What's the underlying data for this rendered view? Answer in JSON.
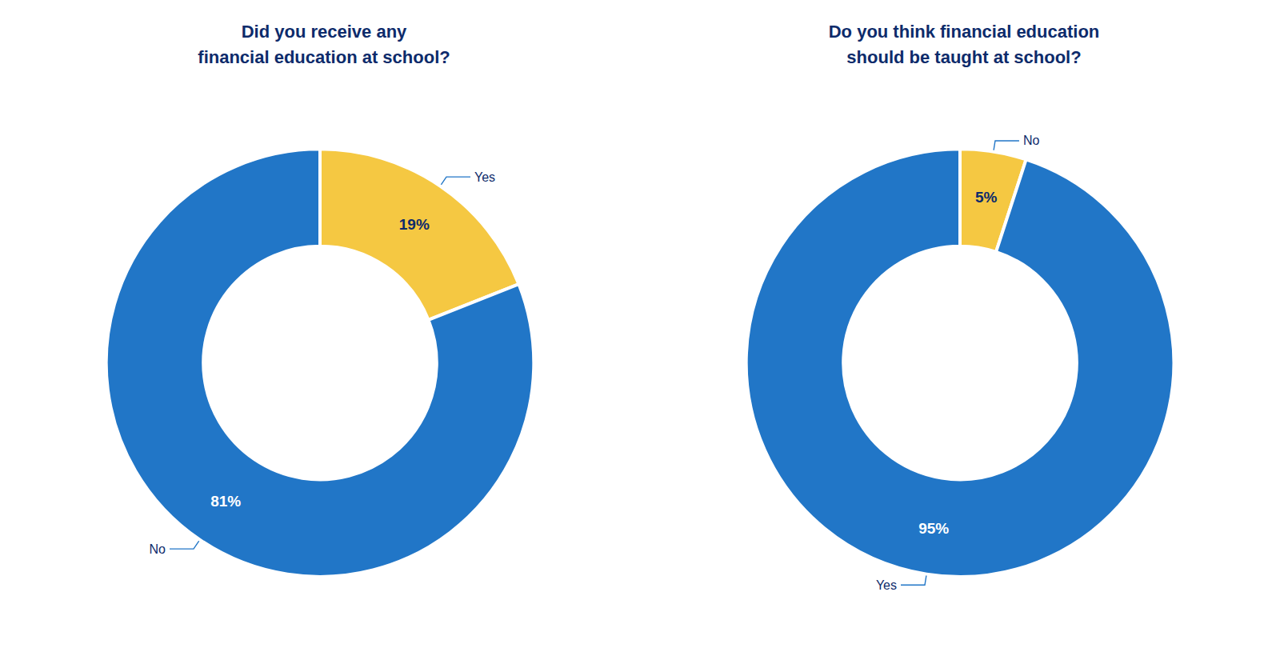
{
  "chart_data": [
    {
      "type": "pie",
      "title": "Did you receive any\nfinancial education at school?",
      "categories": [
        "Yes",
        "No"
      ],
      "values": [
        19,
        81
      ],
      "value_labels": [
        "19%",
        "81%"
      ],
      "colors": [
        "#F5C842",
        "#2176C7"
      ],
      "data_labels": true
    },
    {
      "type": "pie",
      "title": "Do you think financial education\nshould be taught at school?",
      "categories": [
        "No",
        "Yes"
      ],
      "values": [
        5,
        95
      ],
      "value_labels": [
        "5%",
        "95%"
      ],
      "colors": [
        "#F5C842",
        "#2176C7"
      ],
      "data_labels": true
    }
  ]
}
